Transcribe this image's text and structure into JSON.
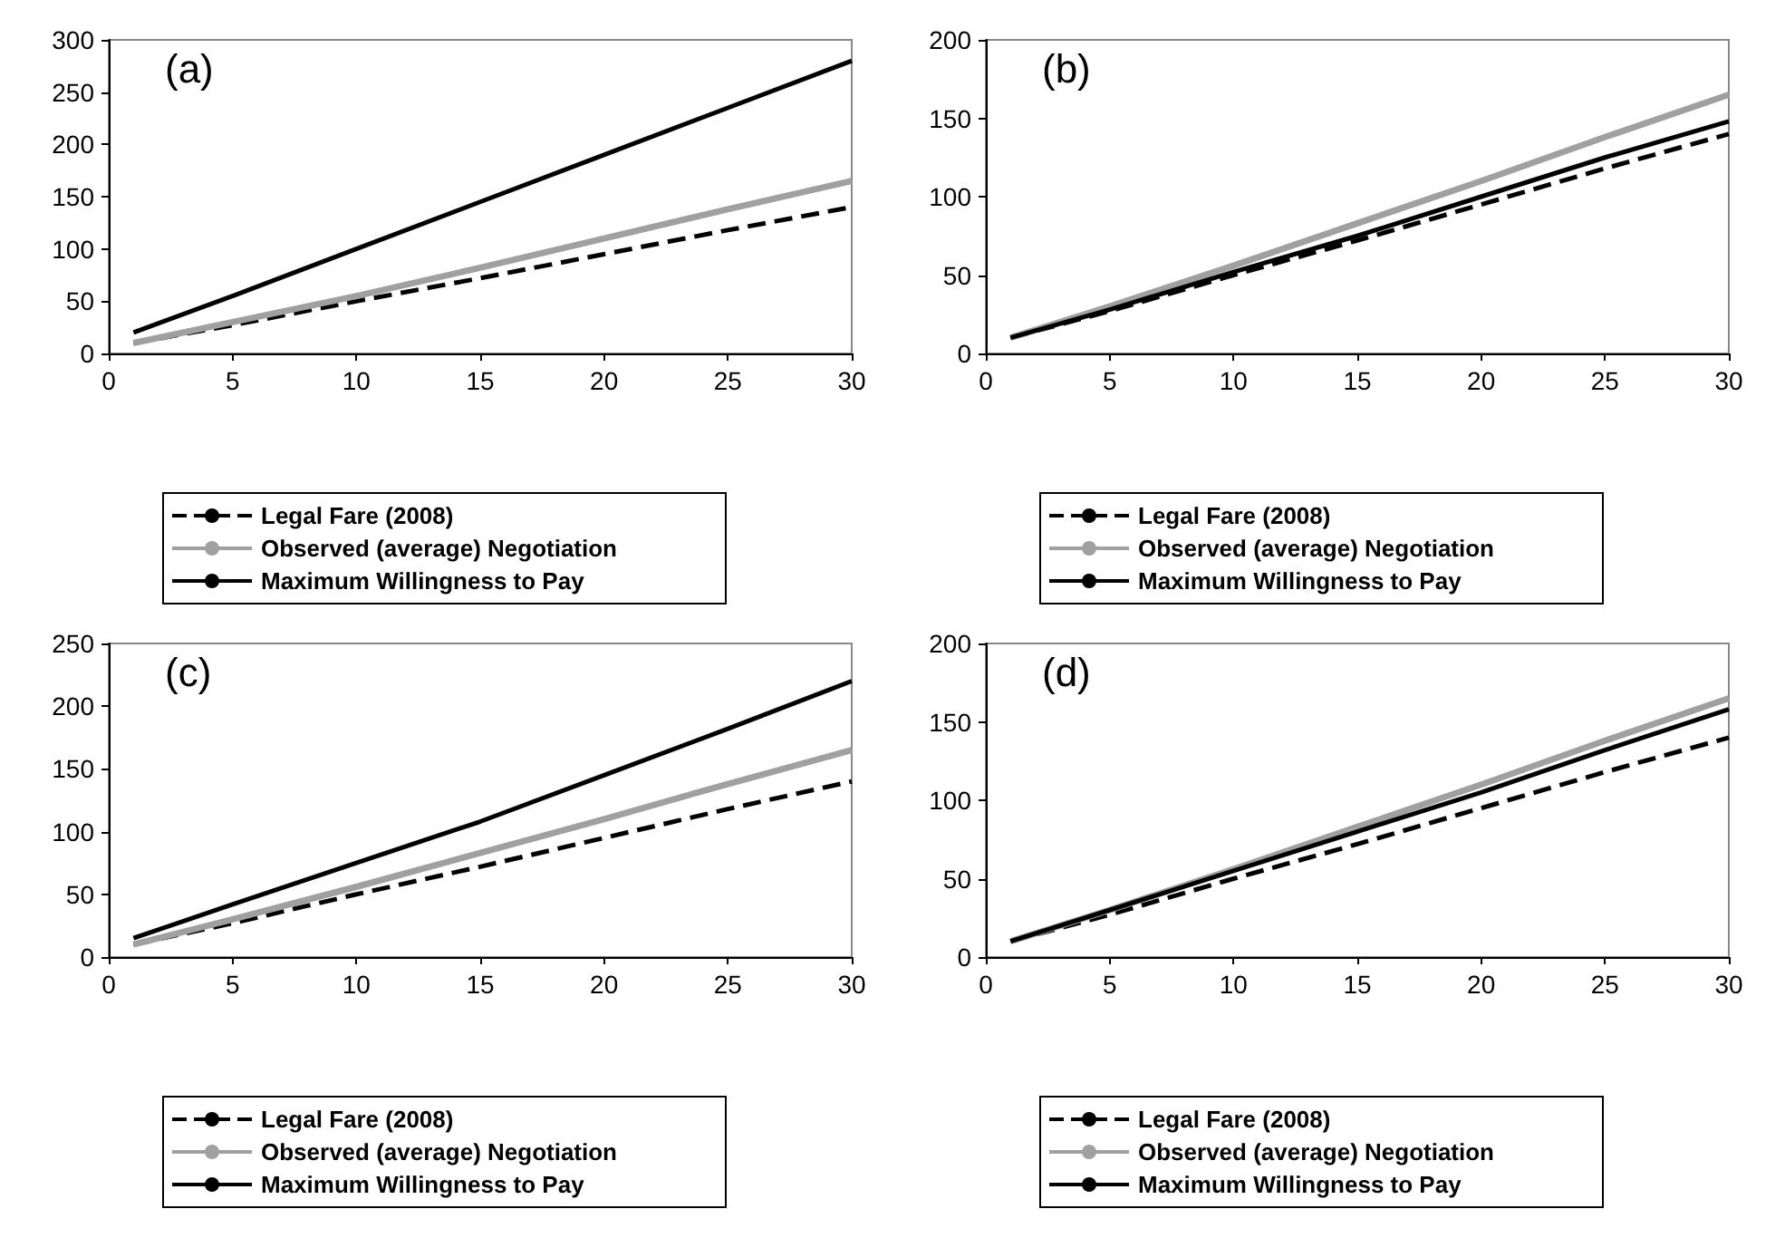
{
  "chart_data": [
    {
      "type": "line",
      "title": "(a)",
      "x": [
        1,
        5,
        10,
        15,
        20,
        25,
        30
      ],
      "xlim": [
        0,
        30
      ],
      "xticks": [
        0,
        5,
        10,
        15,
        20,
        25,
        30
      ],
      "ylim": [
        0,
        300
      ],
      "yticks": [
        0,
        50,
        100,
        150,
        200,
        250,
        300
      ],
      "legend": "bottom",
      "series": [
        {
          "name": "Legal Fare (2008)",
          "color": "#000000",
          "line_style": "dashed",
          "values": [
            10,
            27,
            50,
            72,
            95,
            118,
            140
          ]
        },
        {
          "name": "Observed (average) Negotiation",
          "color": "#a0a0a0",
          "line_style": "solid",
          "values": [
            10,
            30,
            55,
            82,
            110,
            138,
            165
          ]
        },
        {
          "name": "Maximum Willingness to Pay",
          "color": "#000000",
          "line_style": "solid",
          "values": [
            20,
            55,
            100,
            145,
            190,
            235,
            280
          ]
        }
      ]
    },
    {
      "type": "line",
      "title": "(b)",
      "x": [
        1,
        5,
        10,
        15,
        20,
        25,
        30
      ],
      "xlim": [
        0,
        30
      ],
      "xticks": [
        0,
        5,
        10,
        15,
        20,
        25,
        30
      ],
      "ylim": [
        0,
        200
      ],
      "yticks": [
        0,
        50,
        100,
        150,
        200
      ],
      "legend": "bottom",
      "series": [
        {
          "name": "Legal Fare (2008)",
          "color": "#000000",
          "line_style": "dashed",
          "values": [
            10,
            27,
            50,
            72,
            95,
            118,
            140
          ]
        },
        {
          "name": "Observed (average) Negotiation",
          "color": "#a0a0a0",
          "line_style": "solid",
          "values": [
            10,
            30,
            56,
            83,
            110,
            138,
            165
          ]
        },
        {
          "name": "Maximum Willingness to Pay",
          "color": "#000000",
          "line_style": "solid",
          "values": [
            10,
            28,
            52,
            75,
            100,
            125,
            148
          ]
        }
      ]
    },
    {
      "type": "line",
      "title": "(c)",
      "x": [
        1,
        5,
        10,
        15,
        20,
        25,
        30
      ],
      "xlim": [
        0,
        30
      ],
      "xticks": [
        0,
        5,
        10,
        15,
        20,
        25,
        30
      ],
      "ylim": [
        0,
        250
      ],
      "yticks": [
        0,
        50,
        100,
        150,
        200,
        250
      ],
      "legend": "bottom",
      "series": [
        {
          "name": "Legal Fare (2008)",
          "color": "#000000",
          "line_style": "dashed",
          "values": [
            10,
            27,
            50,
            72,
            95,
            118,
            140
          ]
        },
        {
          "name": "Observed (average) Negotiation",
          "color": "#a0a0a0",
          "line_style": "solid",
          "values": [
            10,
            30,
            56,
            83,
            110,
            138,
            165
          ]
        },
        {
          "name": "Maximum Willingness to Pay",
          "color": "#000000",
          "line_style": "solid",
          "values": [
            15,
            42,
            75,
            108,
            145,
            182,
            220
          ]
        }
      ]
    },
    {
      "type": "line",
      "title": "(d)",
      "x": [
        1,
        5,
        10,
        15,
        20,
        25,
        30
      ],
      "xlim": [
        0,
        30
      ],
      "xticks": [
        0,
        5,
        10,
        15,
        20,
        25,
        30
      ],
      "ylim": [
        0,
        200
      ],
      "yticks": [
        0,
        50,
        100,
        150,
        200
      ],
      "legend": "bottom",
      "series": [
        {
          "name": "Legal Fare (2008)",
          "color": "#000000",
          "line_style": "dashed",
          "values": [
            10,
            27,
            50,
            72,
            95,
            118,
            140
          ]
        },
        {
          "name": "Observed (average) Negotiation",
          "color": "#a0a0a0",
          "line_style": "solid",
          "values": [
            10,
            30,
            56,
            83,
            110,
            138,
            165
          ]
        },
        {
          "name": "Maximum Willingness to Pay",
          "color": "#000000",
          "line_style": "solid",
          "values": [
            10,
            30,
            55,
            80,
            105,
            132,
            158
          ]
        }
      ]
    }
  ]
}
